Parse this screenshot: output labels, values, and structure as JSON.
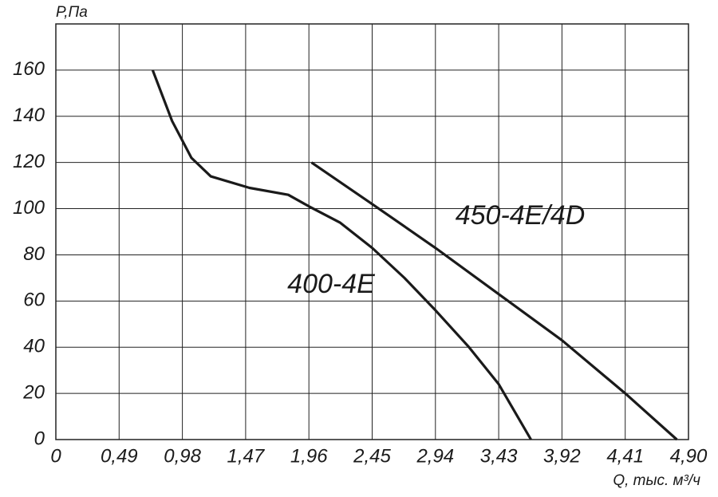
{
  "chart_data": {
    "type": "line",
    "y_label": "P,Па",
    "x_label": "Q, тыс. м³/ч",
    "series": [
      {
        "name": "400-4E",
        "color": "#1a1a1a",
        "x": [
          0.75,
          0.9,
          1.05,
          1.2,
          1.5,
          1.8,
          1.96,
          2.2,
          2.45,
          2.7,
          2.94,
          3.2,
          3.43,
          3.68
        ],
        "values": [
          160,
          138,
          122,
          114,
          109,
          106,
          101,
          94,
          83,
          70,
          56,
          40,
          24,
          0
        ]
      },
      {
        "name": "450-4E/4D",
        "color": "#1a1a1a",
        "x": [
          1.98,
          2.45,
          2.94,
          3.43,
          3.92,
          4.41,
          4.81
        ],
        "values": [
          120,
          102,
          83,
          63,
          43,
          20,
          0
        ]
      }
    ],
    "xlim": [
      0,
      4.9
    ],
    "ylim": [
      0,
      180
    ],
    "xticks": [
      0,
      {
        "value": 0.49,
        "label": "0,49"
      },
      {
        "value": 0.98,
        "label": "0,98"
      },
      {
        "value": 1.47,
        "label": "1,47"
      },
      {
        "value": 1.96,
        "label": "1,96"
      },
      {
        "value": 2.45,
        "label": "2,45"
      },
      {
        "value": 2.94,
        "label": "2,94"
      },
      {
        "value": 3.43,
        "label": "3,43"
      },
      {
        "value": 3.92,
        "label": "3,92"
      },
      {
        "value": 4.41,
        "label": "4,41"
      },
      {
        "value": 4.9,
        "label": "4,90"
      }
    ],
    "yticks": [
      0,
      20,
      40,
      60,
      80,
      100,
      120,
      140,
      160
    ],
    "grid": true
  }
}
